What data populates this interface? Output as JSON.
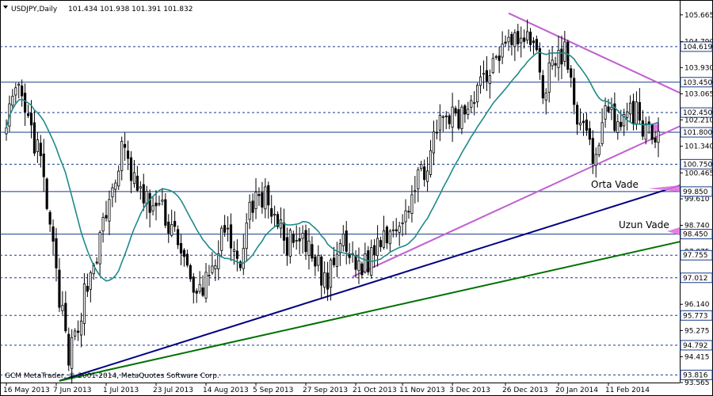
{
  "window": {
    "title": "USDJPY,Daily",
    "ohlc": "101.434 101.938 101.391 101.832",
    "footer": "GCM MetaTrader, © 2001-2014, MetaQuotes Software Corp."
  },
  "chart_data": {
    "type": "candlestick",
    "symbol": "USDJPY",
    "timeframe": "Daily",
    "ylim": [
      93.565,
      106.05
    ],
    "y_ticks": [
      "105.665",
      "104.790",
      "103.930",
      "103.065",
      "102.210",
      "101.340",
      "100.465",
      "99.610",
      "98.740",
      "97.875",
      "97.012",
      "96.140",
      "95.275",
      "94.415",
      "93.565"
    ],
    "x_ticks": [
      "16 May 2013",
      "7 Jun 2013",
      "1 Jul 2013",
      "23 Jul 2013",
      "14 Aug 2013",
      "5 Sep 2013",
      "27 Sep 2013",
      "21 Oct 2013",
      "11 Nov 2013",
      "3 Dec 2013",
      "26 Dec 2013",
      "20 Jan 2014",
      "11 Feb 2014"
    ],
    "horizontal_levels": [
      {
        "value": 104.619,
        "label": "104.619",
        "style": "dashed",
        "color": "#1a3a8a"
      },
      {
        "value": 103.45,
        "label": "103.450",
        "style": "solid",
        "color": "#1a3a8a"
      },
      {
        "value": 102.45,
        "label": "102.450",
        "style": "dashed",
        "color": "#1a3a8a"
      },
      {
        "value": 101.8,
        "label": "101.800",
        "style": "solid",
        "color": "#1a3a8a"
      },
      {
        "value": 100.75,
        "label": "100.750",
        "style": "dashed",
        "color": "#1a3a8a"
      },
      {
        "value": 99.85,
        "label": "99.850",
        "style": "solid",
        "color": "#1a3a8a"
      },
      {
        "value": 98.45,
        "label": "98.450",
        "style": "solid",
        "color": "#1a3a8a"
      },
      {
        "value": 97.755,
        "label": "97.755",
        "style": "dashed",
        "color": "#1a3a8a"
      },
      {
        "value": 97.012,
        "label": "97.012",
        "style": "dashed",
        "color": "#1a3a8a"
      },
      {
        "value": 95.773,
        "label": "95.773",
        "style": "dashed",
        "color": "#1a3a8a"
      },
      {
        "value": 94.792,
        "label": "94.792",
        "style": "dashed",
        "color": "#1a3a8a"
      },
      {
        "value": 93.816,
        "label": "93.816",
        "style": "dashed",
        "color": "#1a3a8a"
      }
    ],
    "trendlines": [
      {
        "name": "",
        "color": "#c060d0",
        "from": [
          "27 Dec 2013",
          105.72
        ],
        "to": [
          "end",
          103.1
        ]
      },
      {
        "name": "",
        "color": "#c060d0",
        "from": [
          "18 Oct 2013",
          97.05
        ],
        "to": [
          "end",
          102.0
        ]
      },
      {
        "name": "Orta Vade",
        "color": "#000080",
        "from": [
          "10 Jun 2013",
          93.62
        ],
        "to": [
          "end",
          100.05
        ]
      },
      {
        "name": "Uzun Vade",
        "color": "#007000",
        "from": [
          "10 Jun 2013",
          93.62
        ],
        "to": [
          "end",
          98.2
        ]
      }
    ],
    "annotations": [
      "Orta Vade",
      "Uzun Vade"
    ],
    "moving_average_color": "#1e8a8a",
    "candle_color": "#000000",
    "highlight_color": "#e070e0",
    "start_date": "2013-05-16",
    "end_date": "2014-03-05",
    "seed": 13,
    "anchors": [
      [
        "2013-05-16",
        102.4
      ],
      [
        "2013-05-22",
        103.0
      ],
      [
        "2013-05-31",
        100.8
      ],
      [
        "2013-06-13",
        94.2
      ],
      [
        "2013-06-20",
        96.5
      ],
      [
        "2013-06-27",
        98.2
      ],
      [
        "2013-07-08",
        101.2
      ],
      [
        "2013-07-17",
        99.5
      ],
      [
        "2013-07-24",
        99.3
      ],
      [
        "2013-08-01",
        98.4
      ],
      [
        "2013-08-08",
        96.3
      ],
      [
        "2013-08-14",
        96.9
      ],
      [
        "2013-08-22",
        98.5
      ],
      [
        "2013-08-28",
        97.3
      ],
      [
        "2013-09-04",
        99.6
      ],
      [
        "2013-09-11",
        99.6
      ],
      [
        "2013-09-18",
        98.2
      ],
      [
        "2013-09-27",
        98.0
      ],
      [
        "2013-10-08",
        96.8
      ],
      [
        "2013-10-14",
        98.2
      ],
      [
        "2013-10-18",
        97.6
      ],
      [
        "2013-10-24",
        97.4
      ],
      [
        "2013-11-01",
        98.5
      ],
      [
        "2013-11-07",
        98.8
      ],
      [
        "2013-11-15",
        99.9
      ],
      [
        "2013-11-22",
        101.2
      ],
      [
        "2013-11-29",
        102.4
      ],
      [
        "2013-12-05",
        102.1
      ],
      [
        "2013-12-12",
        103.2
      ],
      [
        "2013-12-20",
        104.1
      ],
      [
        "2013-12-27",
        105.2
      ],
      [
        "2014-01-02",
        104.7
      ],
      [
        "2014-01-08",
        104.9
      ],
      [
        "2014-01-13",
        103.2
      ],
      [
        "2014-01-17",
        104.2
      ],
      [
        "2014-01-22",
        104.4
      ],
      [
        "2014-01-27",
        102.7
      ],
      [
        "2014-02-04",
        101.0
      ],
      [
        "2014-02-10",
        102.4
      ],
      [
        "2014-02-18",
        102.2
      ],
      [
        "2014-02-24",
        102.5
      ],
      [
        "2014-03-03",
        101.4
      ],
      [
        "2014-03-05",
        101.83
      ]
    ]
  }
}
